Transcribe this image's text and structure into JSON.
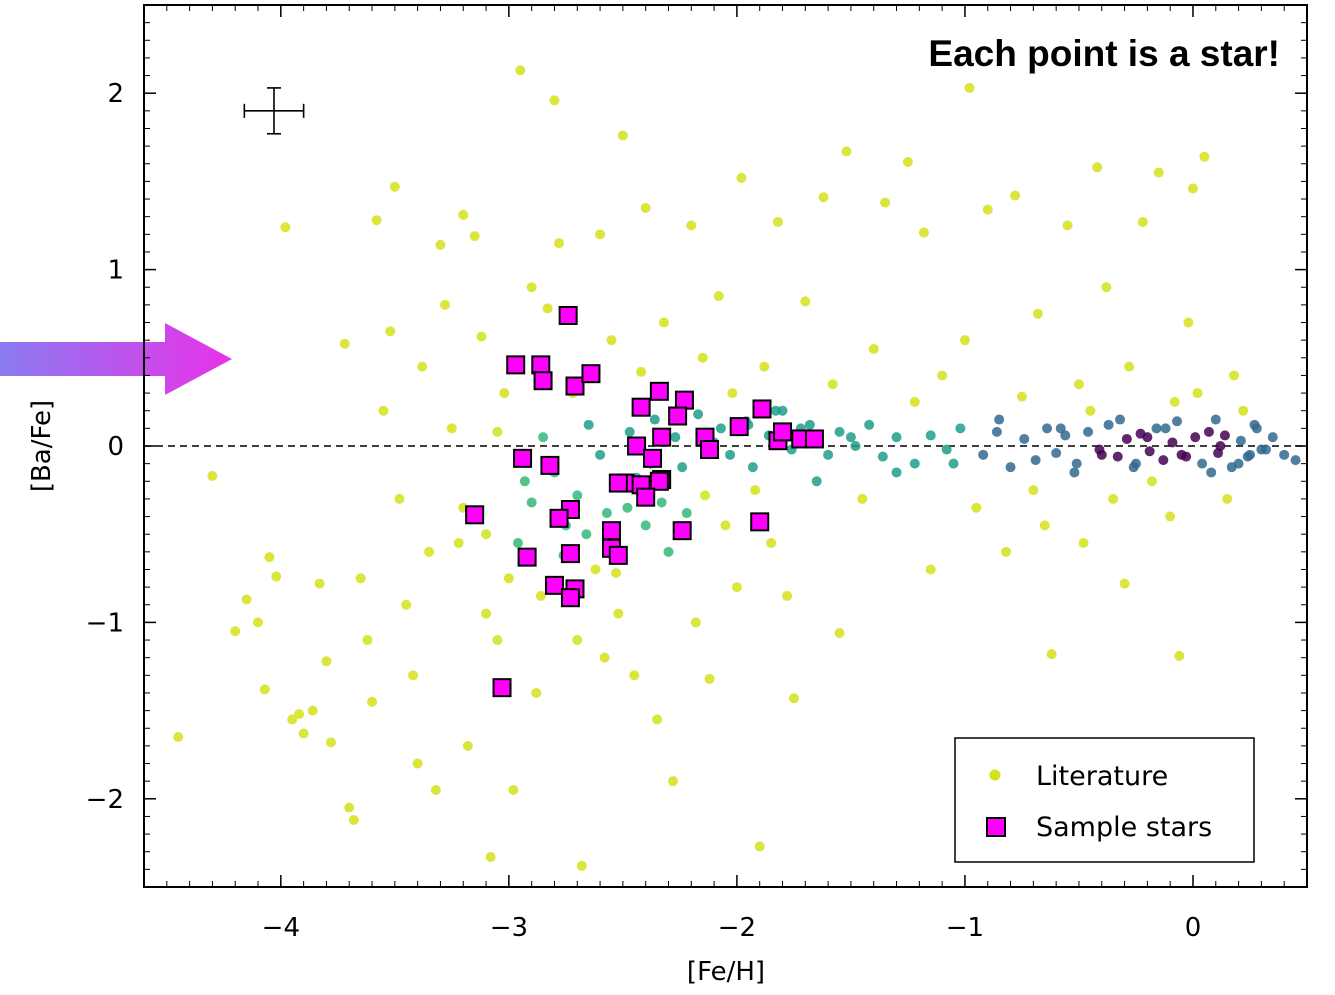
{
  "chart_data": {
    "type": "scatter",
    "title": "",
    "xlabel": "[Fe/H]",
    "ylabel": "[Ba/Fe]",
    "xlim": [
      -4.6,
      0.5
    ],
    "ylim": [
      -2.5,
      2.5
    ],
    "xticks": [
      -4,
      -3,
      -2,
      -1,
      0
    ],
    "yticks": [
      -2,
      -1,
      0,
      1,
      2
    ],
    "xtick_labels": [
      "−4",
      "−3",
      "−2",
      "−1",
      "0"
    ],
    "ytick_labels": [
      "−2",
      "−1",
      "0",
      "1",
      "2"
    ],
    "annotation": "Each point is a star!",
    "reference_line_y": 0,
    "legend_position": "bottom-right",
    "grid": false,
    "typical_error": {
      "x": -4.03,
      "y": 1.9,
      "xerr": 0.13,
      "yerr": 0.13
    },
    "series": [
      {
        "name": "Literature",
        "marker": "circle",
        "color": "#d4e21a",
        "density_colors": [
          "#d4e21a",
          "#35b779",
          "#1f9e89",
          "#31688e",
          "#440154"
        ],
        "points": [
          [
            -4.45,
            -1.65
          ],
          [
            -4.3,
            -0.17
          ],
          [
            -4.2,
            -1.05
          ],
          [
            -4.15,
            -0.87
          ],
          [
            -4.1,
            -1.0
          ],
          [
            -4.07,
            -1.38
          ],
          [
            -4.05,
            -0.63
          ],
          [
            -4.02,
            -0.74
          ],
          [
            -3.98,
            1.24
          ],
          [
            -3.95,
            -1.55
          ],
          [
            -3.92,
            -1.52
          ],
          [
            -3.9,
            -1.63
          ],
          [
            -3.86,
            -1.5
          ],
          [
            -3.83,
            -0.78
          ],
          [
            -3.8,
            -1.22
          ],
          [
            -3.78,
            -1.68
          ],
          [
            -3.72,
            0.58
          ],
          [
            -3.7,
            -2.05
          ],
          [
            -3.68,
            -2.12
          ],
          [
            -3.65,
            -0.75
          ],
          [
            -3.62,
            -1.1
          ],
          [
            -3.6,
            -1.45
          ],
          [
            -3.58,
            1.28
          ],
          [
            -3.55,
            0.2
          ],
          [
            -3.52,
            0.65
          ],
          [
            -3.5,
            1.47
          ],
          [
            -3.48,
            -0.3
          ],
          [
            -3.45,
            -0.9
          ],
          [
            -3.42,
            -1.3
          ],
          [
            -3.4,
            -1.8
          ],
          [
            -3.38,
            0.45
          ],
          [
            -3.35,
            -0.6
          ],
          [
            -3.32,
            -1.95
          ],
          [
            -3.3,
            1.14
          ],
          [
            -3.28,
            0.8
          ],
          [
            -3.25,
            0.1
          ],
          [
            -3.22,
            -0.55
          ],
          [
            -3.2,
            1.31
          ],
          [
            -3.18,
            -1.7
          ],
          [
            -3.15,
            1.19
          ],
          [
            -3.12,
            0.62
          ],
          [
            -3.1,
            -0.95
          ],
          [
            -3.08,
            -2.33
          ],
          [
            -3.05,
            -1.1
          ],
          [
            -3.02,
            0.3
          ],
          [
            -3.0,
            -0.75
          ],
          [
            -2.98,
            -1.95
          ],
          [
            -2.95,
            2.13
          ],
          [
            -2.93,
            -0.2
          ],
          [
            -2.9,
            0.9
          ],
          [
            -2.88,
            -1.4
          ],
          [
            -2.85,
            0.05
          ],
          [
            -2.83,
            0.78
          ],
          [
            -2.8,
            1.96
          ],
          [
            -2.78,
            1.15
          ],
          [
            -2.75,
            -0.45
          ],
          [
            -2.72,
            0.3
          ],
          [
            -2.7,
            -1.1
          ],
          [
            -2.68,
            -2.38
          ],
          [
            -2.65,
            0.12
          ],
          [
            -2.62,
            -0.7
          ],
          [
            -2.6,
            1.2
          ],
          [
            -2.58,
            -1.2
          ],
          [
            -2.55,
            0.6
          ],
          [
            -2.52,
            -0.95
          ],
          [
            -2.5,
            1.76
          ],
          [
            -2.48,
            -0.35
          ],
          [
            -2.45,
            -1.3
          ],
          [
            -2.42,
            0.42
          ],
          [
            -2.4,
            1.35
          ],
          [
            -2.38,
            -0.1
          ],
          [
            -2.35,
            -1.55
          ],
          [
            -2.32,
            0.7
          ],
          [
            -2.3,
            -0.6
          ],
          [
            -2.28,
            -1.9
          ],
          [
            -2.25,
            0.22
          ],
          [
            -2.22,
            -0.38
          ],
          [
            -2.2,
            1.25
          ],
          [
            -2.18,
            -1.0
          ],
          [
            -2.15,
            0.5
          ],
          [
            -2.12,
            -1.32
          ],
          [
            -2.1,
            0.02
          ],
          [
            -2.08,
            0.85
          ],
          [
            -2.05,
            -0.45
          ],
          [
            -2.02,
            0.3
          ],
          [
            -2.0,
            -0.8
          ],
          [
            -1.98,
            1.52
          ],
          [
            -1.95,
            0.12
          ],
          [
            -1.92,
            -0.25
          ],
          [
            -1.9,
            -2.27
          ],
          [
            -1.88,
            0.45
          ],
          [
            -1.85,
            -0.55
          ],
          [
            -1.82,
            1.27
          ],
          [
            -1.8,
            0.2
          ],
          [
            -1.78,
            -0.85
          ],
          [
            -1.75,
            -1.43
          ],
          [
            -1.72,
            0.1
          ],
          [
            -1.7,
            0.82
          ],
          [
            -1.65,
            -0.2
          ],
          [
            -1.62,
            1.41
          ],
          [
            -1.58,
            0.35
          ],
          [
            -1.55,
            -1.06
          ],
          [
            -1.52,
            1.67
          ],
          [
            -1.5,
            0.05
          ],
          [
            -1.45,
            -0.3
          ],
          [
            -1.4,
            0.55
          ],
          [
            -1.35,
            1.38
          ],
          [
            -1.3,
            -0.15
          ],
          [
            -1.25,
            1.61
          ],
          [
            -1.22,
            0.25
          ],
          [
            -1.18,
            1.21
          ],
          [
            -1.15,
            -0.7
          ],
          [
            -1.1,
            0.4
          ],
          [
            -1.05,
            -0.1
          ],
          [
            -1.0,
            0.6
          ],
          [
            -0.98,
            2.03
          ],
          [
            -0.95,
            -0.35
          ],
          [
            -0.9,
            1.34
          ],
          [
            -0.85,
            0.15
          ],
          [
            -0.82,
            -0.6
          ],
          [
            -0.78,
            1.42
          ],
          [
            -0.75,
            0.28
          ],
          [
            -0.7,
            -0.25
          ],
          [
            -0.68,
            0.75
          ],
          [
            -0.65,
            -0.45
          ],
          [
            -0.62,
            -1.18
          ],
          [
            -0.58,
            0.1
          ],
          [
            -0.55,
            1.25
          ],
          [
            -0.52,
            -0.15
          ],
          [
            -0.5,
            0.35
          ],
          [
            -0.48,
            -0.55
          ],
          [
            -0.45,
            0.2
          ],
          [
            -0.42,
            1.58
          ],
          [
            -0.4,
            -0.05
          ],
          [
            -0.38,
            0.9
          ],
          [
            -0.35,
            -0.3
          ],
          [
            -0.32,
            0.15
          ],
          [
            -0.3,
            -0.78
          ],
          [
            -0.28,
            0.45
          ],
          [
            -0.25,
            -0.1
          ],
          [
            -0.22,
            1.27
          ],
          [
            -0.2,
            0.05
          ],
          [
            -0.18,
            -0.2
          ],
          [
            -0.15,
            1.55
          ],
          [
            -0.12,
            0.1
          ],
          [
            -0.1,
            -0.4
          ],
          [
            -0.08,
            0.25
          ],
          [
            -0.06,
            -1.19
          ],
          [
            -0.05,
            -0.05
          ],
          [
            -0.02,
            0.7
          ],
          [
            0.0,
            1.46
          ],
          [
            0.02,
            0.3
          ],
          [
            0.05,
            1.64
          ],
          [
            0.08,
            -0.15
          ],
          [
            0.1,
            0.15
          ],
          [
            0.12,
            0.0
          ],
          [
            0.15,
            -0.3
          ],
          [
            0.18,
            0.4
          ],
          [
            0.2,
            -0.1
          ],
          [
            0.22,
            0.2
          ],
          [
            0.25,
            -0.05
          ],
          [
            0.28,
            0.1
          ],
          [
            0.32,
            -0.02
          ],
          [
            0.35,
            0.05
          ],
          [
            0.4,
            -0.05
          ],
          [
            0.45,
            -0.08
          ],
          [
            -3.2,
            -0.35
          ],
          [
            -3.1,
            -0.5
          ],
          [
            -3.05,
            0.08
          ],
          [
            -2.96,
            -0.55
          ],
          [
            -2.9,
            -0.32
          ],
          [
            -2.86,
            -0.85
          ],
          [
            -2.8,
            -0.15
          ],
          [
            -2.76,
            -0.62
          ],
          [
            -2.7,
            -0.28
          ],
          [
            -2.66,
            -0.5
          ],
          [
            -2.6,
            -0.05
          ],
          [
            -2.57,
            -0.38
          ],
          [
            -2.53,
            -0.72
          ],
          [
            -2.47,
            0.08
          ],
          [
            -2.44,
            -0.18
          ],
          [
            -2.4,
            -0.45
          ],
          [
            -2.36,
            0.15
          ],
          [
            -2.33,
            -0.32
          ],
          [
            -2.27,
            0.05
          ],
          [
            -2.24,
            -0.12
          ],
          [
            -2.17,
            0.18
          ],
          [
            -2.14,
            -0.28
          ],
          [
            -2.07,
            0.1
          ],
          [
            -2.03,
            -0.05
          ],
          [
            -1.96,
            0.14
          ],
          [
            -1.93,
            -0.12
          ],
          [
            -1.86,
            0.06
          ],
          [
            -1.83,
            0.2
          ],
          [
            -1.76,
            -0.02
          ],
          [
            -1.68,
            0.12
          ],
          [
            -1.6,
            -0.05
          ],
          [
            -1.55,
            0.08
          ],
          [
            -1.48,
            0.0
          ],
          [
            -1.42,
            0.12
          ],
          [
            -1.36,
            -0.06
          ],
          [
            -1.3,
            0.05
          ],
          [
            -1.22,
            -0.1
          ],
          [
            -1.15,
            0.06
          ],
          [
            -1.08,
            -0.02
          ],
          [
            -1.02,
            0.1
          ],
          [
            -0.92,
            -0.05
          ],
          [
            -0.86,
            0.08
          ],
          [
            -0.8,
            -0.12
          ],
          [
            -0.74,
            0.04
          ],
          [
            -0.69,
            -0.08
          ],
          [
            -0.64,
            0.1
          ],
          [
            -0.6,
            -0.04
          ],
          [
            -0.56,
            0.06
          ],
          [
            -0.51,
            -0.1
          ],
          [
            -0.46,
            0.08
          ],
          [
            -0.41,
            -0.02
          ],
          [
            -0.37,
            0.12
          ],
          [
            -0.33,
            -0.06
          ],
          [
            -0.29,
            0.04
          ],
          [
            -0.26,
            -0.12
          ],
          [
            -0.23,
            0.07
          ],
          [
            -0.19,
            -0.03
          ],
          [
            -0.16,
            0.1
          ],
          [
            -0.13,
            -0.08
          ],
          [
            -0.09,
            0.02
          ],
          [
            -0.07,
            0.14
          ],
          [
            -0.03,
            -0.06
          ],
          [
            0.01,
            0.05
          ],
          [
            0.04,
            -0.1
          ],
          [
            0.07,
            0.08
          ],
          [
            0.11,
            -0.04
          ],
          [
            0.14,
            0.06
          ],
          [
            0.17,
            -0.12
          ],
          [
            0.21,
            0.03
          ],
          [
            0.24,
            -0.06
          ],
          [
            0.27,
            0.12
          ],
          [
            0.3,
            -0.02
          ]
        ]
      },
      {
        "name": "Sample stars",
        "marker": "square",
        "color": "#ff00ff",
        "points": [
          [
            -2.74,
            0.74
          ],
          [
            -2.97,
            0.46
          ],
          [
            -2.86,
            0.46
          ],
          [
            -2.85,
            0.37
          ],
          [
            -2.71,
            0.34
          ],
          [
            -2.64,
            0.41
          ],
          [
            -2.42,
            0.22
          ],
          [
            -2.34,
            0.31
          ],
          [
            -2.23,
            0.26
          ],
          [
            -2.26,
            0.17
          ],
          [
            -1.89,
            0.21
          ],
          [
            -1.99,
            0.11
          ],
          [
            -2.14,
            0.05
          ],
          [
            -2.12,
            -0.02
          ],
          [
            -1.82,
            0.03
          ],
          [
            -1.8,
            0.08
          ],
          [
            -1.72,
            0.04
          ],
          [
            -1.66,
            0.04
          ],
          [
            -2.44,
            0.0
          ],
          [
            -2.33,
            0.05
          ],
          [
            -2.37,
            -0.07
          ],
          [
            -2.94,
            -0.07
          ],
          [
            -2.82,
            -0.11
          ],
          [
            -2.49,
            -0.21
          ],
          [
            -2.52,
            -0.21
          ],
          [
            -2.42,
            -0.22
          ],
          [
            -2.33,
            -0.19
          ],
          [
            -2.34,
            -0.2
          ],
          [
            -2.4,
            -0.29
          ],
          [
            -3.15,
            -0.39
          ],
          [
            -2.73,
            -0.36
          ],
          [
            -2.78,
            -0.41
          ],
          [
            -1.9,
            -0.43
          ],
          [
            -2.24,
            -0.48
          ],
          [
            -2.55,
            -0.48
          ],
          [
            -2.55,
            -0.58
          ],
          [
            -2.52,
            -0.62
          ],
          [
            -2.73,
            -0.61
          ],
          [
            -2.92,
            -0.63
          ],
          [
            -2.8,
            -0.79
          ],
          [
            -2.71,
            -0.81
          ],
          [
            -2.73,
            -0.86
          ],
          [
            -3.03,
            -1.37
          ]
        ]
      }
    ]
  },
  "legend": {
    "items": [
      {
        "label": "Literature"
      },
      {
        "label": "Sample stars"
      }
    ]
  },
  "arrow": {
    "color_start": "#8a7bf0",
    "color_end": "#e832e8"
  }
}
